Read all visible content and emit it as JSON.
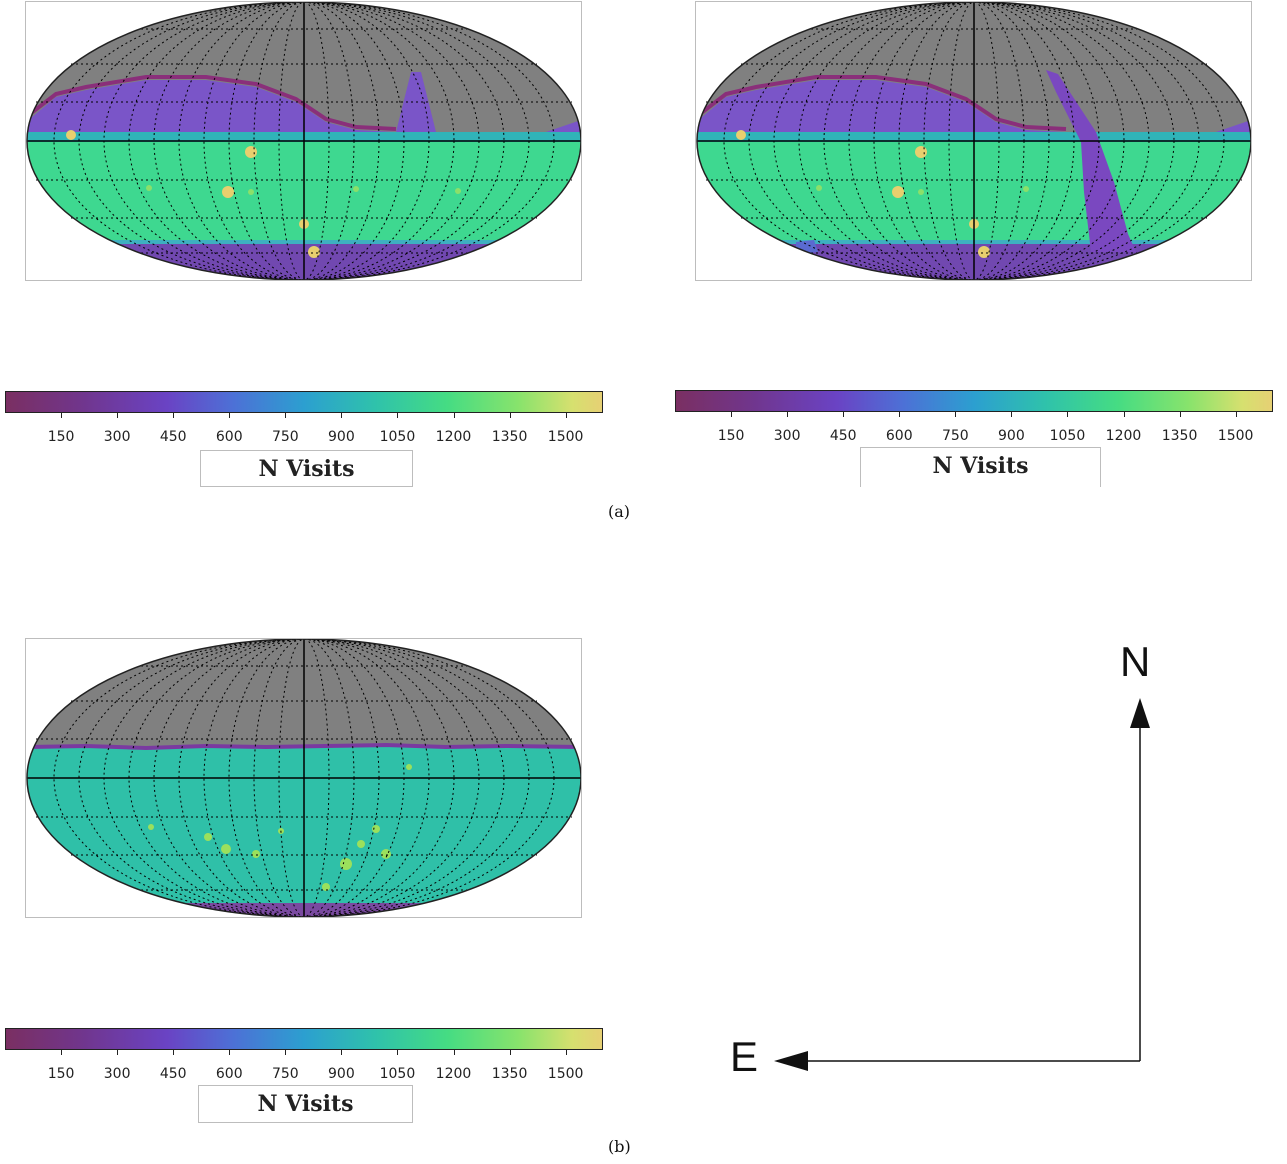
{
  "figure": {
    "captions": [
      "(a)",
      "(b)"
    ]
  },
  "chart_data": [
    {
      "type": "heatmap",
      "projection": "mollweide",
      "panel": "a-left",
      "colorbar": {
        "label": "N Visits",
        "ticks": [
          "150",
          "300",
          "450",
          "600",
          "750",
          "900",
          "1050",
          "1200",
          "1350",
          "1500"
        ],
        "range": [
          0,
          1600
        ],
        "colormap": "viridis-like"
      },
      "masked_color": "#808080",
      "grid": true,
      "regions": [
        {
          "region": "northern band above equator",
          "value": 400
        },
        {
          "region": "southern sky",
          "value": 1000
        },
        {
          "region": "south polar cap",
          "value": 300
        },
        {
          "region": "northern gray (no visits)",
          "value": 0
        },
        {
          "region": "narrow northern spur",
          "value": 350
        }
      ],
      "hotspots_value": 1550
    },
    {
      "type": "heatmap",
      "projection": "mollweide",
      "panel": "a-right",
      "colorbar": {
        "label": "N Visits",
        "ticks": [
          "150",
          "300",
          "450",
          "600",
          "750",
          "900",
          "1050",
          "1200",
          "1350",
          "1500"
        ],
        "range": [
          0,
          1600
        ],
        "colormap": "viridis-like"
      },
      "masked_color": "#808080",
      "grid": true,
      "regions": [
        {
          "region": "northern band above equator",
          "value": 400
        },
        {
          "region": "southern sky",
          "value": 1000
        },
        {
          "region": "south polar cap",
          "value": 300
        },
        {
          "region": "northern gray (no visits)",
          "value": 0
        },
        {
          "region": "galactic-plane stripe",
          "value": 350
        }
      ],
      "hotspots_value": 1550
    },
    {
      "type": "heatmap",
      "projection": "mollweide",
      "panel": "b",
      "colorbar": {
        "label": "N Visits",
        "ticks": [
          "150",
          "300",
          "450",
          "600",
          "750",
          "900",
          "1050",
          "1200",
          "1350",
          "1500"
        ],
        "range": [
          0,
          1600
        ],
        "colormap": "viridis-like"
      },
      "masked_color": "#808080",
      "grid": true,
      "regions": [
        {
          "region": "sky below ~+15 deg dec",
          "value": 900
        },
        {
          "region": "northern gray (no visits)",
          "value": 0
        },
        {
          "region": "south pole rim",
          "value": 300
        }
      ],
      "hotspots_value": 1250
    }
  ],
  "compass": {
    "north": "N",
    "east": "E"
  }
}
